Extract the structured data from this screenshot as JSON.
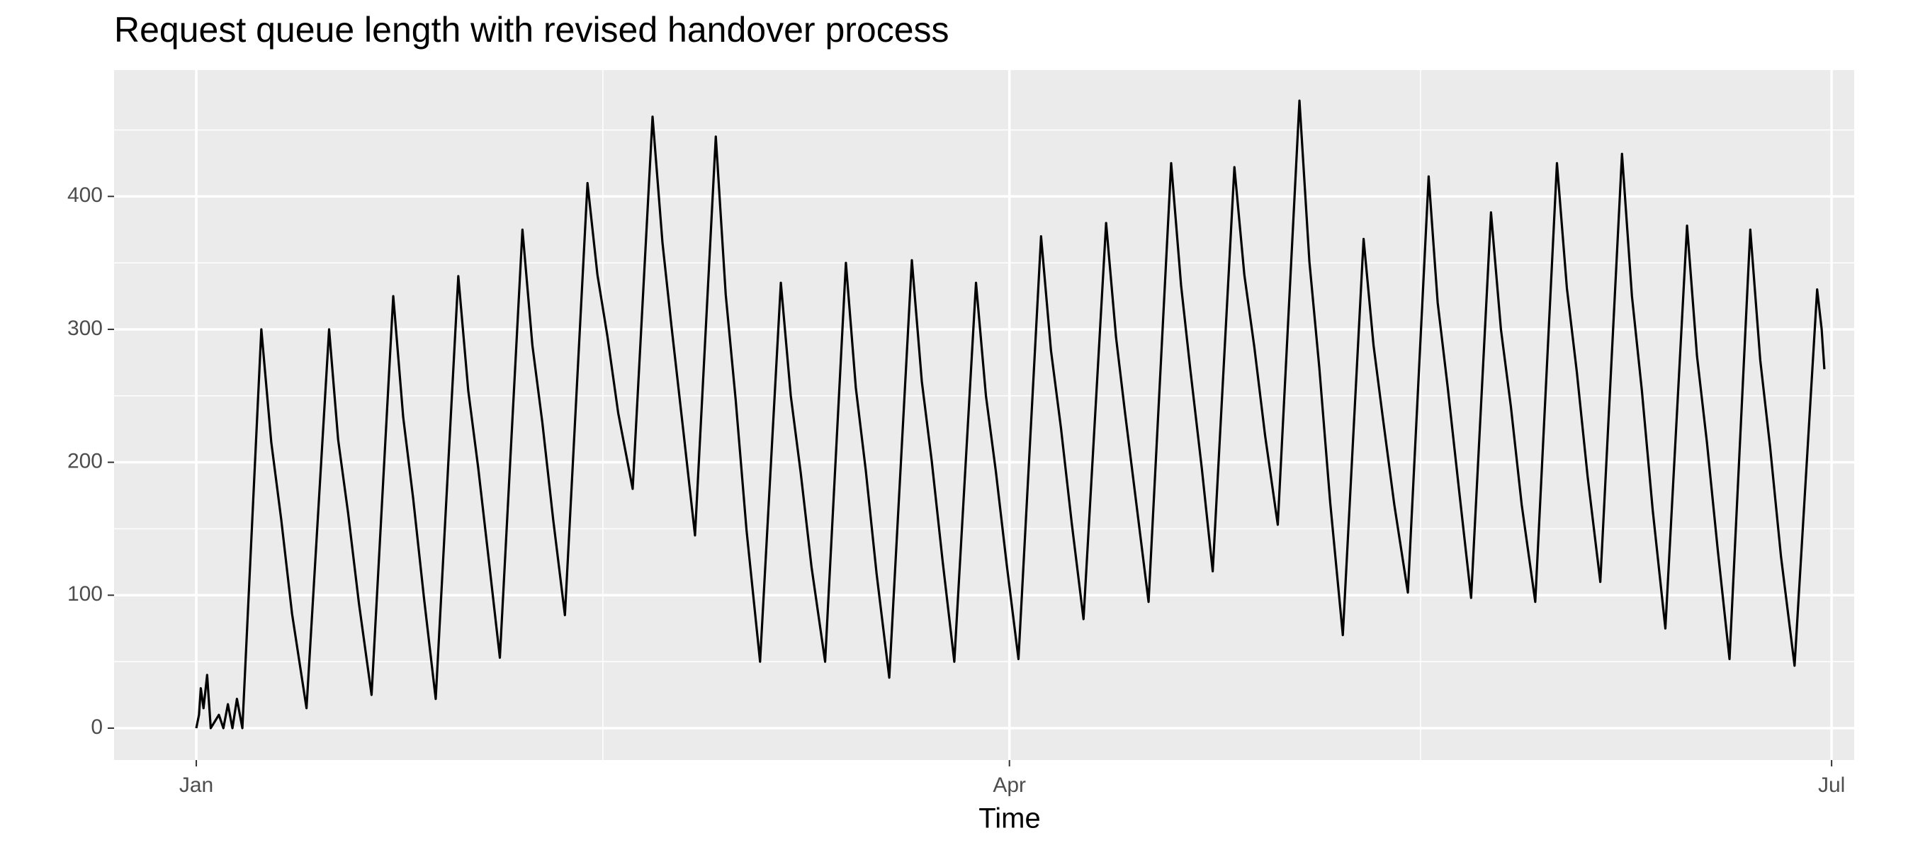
{
  "chart_data": {
    "type": "line",
    "title": "Request queue length with revised handover process",
    "x_label": "Time",
    "x": [
      0,
      0.3,
      0.5,
      0.8,
      1.2,
      1.6,
      2.5,
      3,
      3.5,
      4,
      4.5,
      5.1,
      7.2,
      8.3,
      9.4,
      10.6,
      12.2,
      14.7,
      15.7,
      16.8,
      18.0,
      19.4,
      21.8,
      22.9,
      24.0,
      25.2,
      26.5,
      29.0,
      30.1,
      31.2,
      32.4,
      33.6,
      36.1,
      37.2,
      38.3,
      39.5,
      40.8,
      43.3,
      44.4,
      45.5,
      46.7,
      48.3,
      50.5,
      51.6,
      52.6,
      53.9,
      55.2,
      57.5,
      58.6,
      59.7,
      60.9,
      62.4,
      64.7,
      65.8,
      66.9,
      68.1,
      69.6,
      71.9,
      73.0,
      74.1,
      75.3,
      76.7,
      79.2,
      80.3,
      81.4,
      82.6,
      83.9,
      86.3,
      87.4,
      88.5,
      89.7,
      91.0,
      93.5,
      94.6,
      95.7,
      96.9,
      98.2,
      100.7,
      101.8,
      102.8,
      104.1,
      105.4,
      107.9,
      109.0,
      110.0,
      111.3,
      112.5,
      114.9,
      116.0,
      117.1,
      118.3,
      119.7,
      122.1,
      123.2,
      124.3,
      125.5,
      126.9,
      129.2,
      130.3,
      131.3,
      132.6,
      134.1,
      136.4,
      137.4,
      138.5,
      139.8,
      141.1,
      143.3,
      144.4,
      145.5,
      146.7,
      148.2,
      150.6,
      151.7,
      152.8,
      154.0,
      155.4,
      157.8,
      158.9,
      160.0,
      161.2,
      162.6,
      165.0,
      166.1,
      167.2,
      168.4,
      169.7,
      172.0,
      173.1,
      174.2,
      175.4,
      176.9,
      179.4,
      179.9,
      180.2
    ],
    "values": [
      0,
      10,
      30,
      15,
      40,
      0,
      10,
      0,
      18,
      0,
      22,
      0,
      300,
      215,
      157,
      86,
      15,
      300,
      217,
      162,
      94,
      25,
      325,
      234,
      173,
      98,
      22,
      340,
      254,
      196,
      125,
      53,
      375,
      288,
      230,
      157,
      85,
      410,
      341,
      295,
      237,
      180,
      460,
      365,
      302,
      224,
      145,
      445,
      326,
      247,
      149,
      50,
      335,
      250,
      192,
      121,
      50,
      350,
      256,
      194,
      116,
      38,
      352,
      261,
      201,
      126,
      50,
      335,
      250,
      193,
      123,
      52,
      370,
      284,
      226,
      154,
      82,
      380,
      294,
      237,
      166,
      95,
      425,
      333,
      271,
      195,
      118,
      422,
      341,
      287,
      220,
      153,
      472,
      351,
      271,
      170,
      70,
      368,
      288,
      235,
      168,
      102,
      415,
      320,
      257,
      177,
      98,
      388,
      300,
      242,
      168,
      95,
      425,
      331,
      268,
      189,
      110,
      432,
      325,
      254,
      164,
      75,
      378,
      280,
      215,
      134,
      52,
      375,
      277,
      211,
      129,
      47,
      330,
      300,
      270
    ],
    "color": "#000000",
    "xlim": [
      -9.1,
      183.5
    ],
    "xticks": [
      {
        "value": 0,
        "label": "Jan"
      },
      {
        "value": 90,
        "label": "Apr"
      },
      {
        "value": 181,
        "label": "Jul"
      }
    ],
    "x_minor_ticks": [
      45,
      135.5
    ],
    "ylim": [
      -24,
      495
    ],
    "yticks": [
      0,
      100,
      200,
      300,
      400
    ],
    "y_minor_ticks": [
      50,
      150,
      250,
      350,
      450
    ],
    "grid": true
  }
}
